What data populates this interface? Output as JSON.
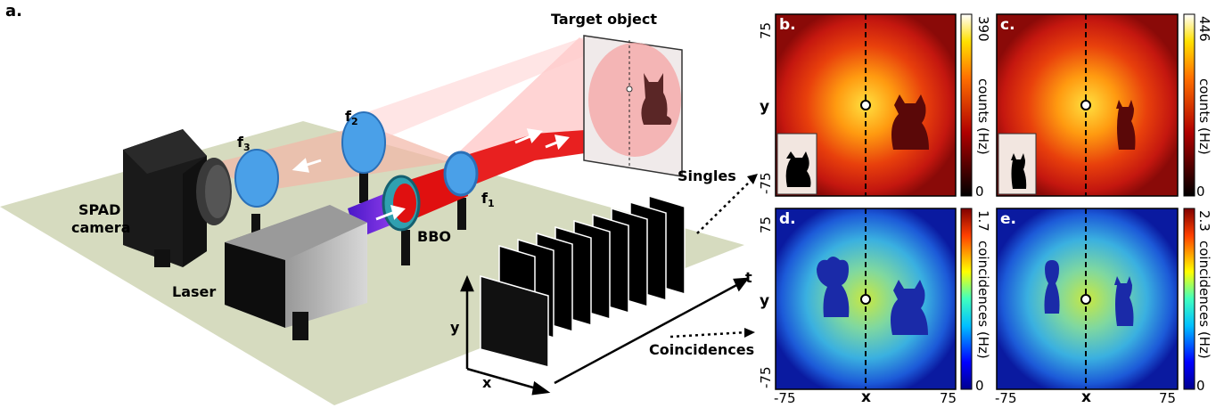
{
  "figure": {
    "panel_a": "a.",
    "panel_b": "b.",
    "panel_c": "c.",
    "panel_d": "d.",
    "panel_e": "e."
  },
  "setup": {
    "target_object": "Target object",
    "spad_line1": "SPAD",
    "spad_line2": "camera",
    "laser": "Laser",
    "bbo": "BBO",
    "f1": "f",
    "f1_sub": "1",
    "f2": "f",
    "f2_sub": "2",
    "f3": "f",
    "f3_sub": "3",
    "singles": "Singles",
    "coincidences": "Coincidences",
    "axis_x": "x",
    "axis_y": "y",
    "axis_t": "t"
  },
  "panels": {
    "b": {
      "max": "390",
      "min": "0",
      "cbar_label": "counts (Hz)",
      "ytick_top": "75",
      "ytick_bottom": "-75",
      "ylabel": "y"
    },
    "c": {
      "max": "446",
      "min": "0",
      "cbar_label": "counts (Hz)"
    },
    "d": {
      "max": "1.7",
      "min": "0",
      "cbar_label": "coincidences (Hz)",
      "ytick_top": "75",
      "ytick_bottom": "-75",
      "ylabel": "y",
      "xtick_left": "-75",
      "xtick_right": "75",
      "xlabel": "x"
    },
    "e": {
      "max": "2.3",
      "min": "0",
      "cbar_label": "coincidences (Hz)",
      "xtick_left": "-75",
      "xtick_right": "75",
      "xlabel": "x"
    }
  },
  "colors": {
    "table": "#d8dcc0",
    "pump": "#6a2bd6",
    "beam": "#e31b1b",
    "lens": "#4aa0e8",
    "hot_bg": "#c4170f",
    "cool_bg": "#7fd0c0"
  }
}
